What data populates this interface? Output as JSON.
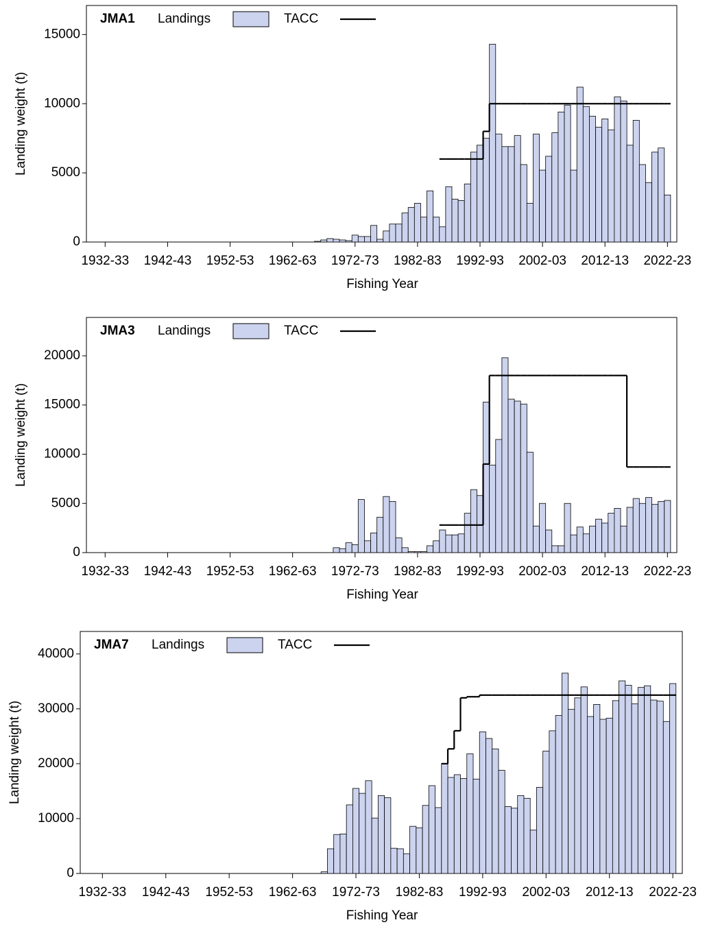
{
  "chart_data": [
    {
      "type": "bar",
      "title": "JMA1",
      "x_label": "Fishing Year",
      "y_label": "Landing weight (t)",
      "xlim": [
        1929,
        2023.5
      ],
      "ylim": [
        0,
        17100
      ],
      "yticks": [
        0,
        5000,
        10000,
        15000
      ],
      "xticks": [
        {
          "value": 1932,
          "label": "1932-33"
        },
        {
          "value": 1942,
          "label": "1942-43"
        },
        {
          "value": 1952,
          "label": "1952-53"
        },
        {
          "value": 1962,
          "label": "1962-63"
        },
        {
          "value": 1972,
          "label": "1972-73"
        },
        {
          "value": 1982,
          "label": "1982-83"
        },
        {
          "value": 1992,
          "label": "1992-93"
        },
        {
          "value": 2002,
          "label": "2002-03"
        },
        {
          "value": 2012,
          "label": "2012-13"
        },
        {
          "value": 2022,
          "label": "2022-23"
        }
      ],
      "x": [
        1966,
        1967,
        1968,
        1969,
        1970,
        1971,
        1972,
        1973,
        1974,
        1975,
        1976,
        1977,
        1978,
        1979,
        1980,
        1981,
        1982,
        1983,
        1984,
        1985,
        1986,
        1987,
        1988,
        1989,
        1990,
        1991,
        1992,
        1993,
        1994,
        1995,
        1996,
        1997,
        1998,
        1999,
        2000,
        2001,
        2002,
        2003,
        2004,
        2005,
        2006,
        2007,
        2008,
        2009,
        2010,
        2011,
        2012,
        2013,
        2014,
        2015,
        2016,
        2017,
        2018,
        2019,
        2020,
        2021,
        2022
      ],
      "series": [
        {
          "name": "Landings",
          "color": "#ccd3ee",
          "values": [
            50,
            150,
            250,
            200,
            150,
            100,
            500,
            400,
            400,
            1200,
            200,
            800,
            1300,
            1300,
            2100,
            2500,
            2800,
            1800,
            3700,
            1800,
            1100,
            4000,
            3100,
            3000,
            4200,
            6500,
            7000,
            7500,
            14300,
            7800,
            6900,
            6900,
            7700,
            5600,
            2800,
            7800,
            5200,
            6200,
            7900,
            9400,
            9900,
            5200,
            11200,
            9800,
            9100,
            8300,
            8900,
            8100,
            10500,
            10200,
            7000,
            8800,
            5600,
            4300,
            6500,
            6800,
            3400
          ]
        },
        {
          "name": "TACC",
          "color": "#000000",
          "values": [
            null,
            null,
            null,
            null,
            null,
            null,
            null,
            null,
            null,
            null,
            null,
            null,
            null,
            null,
            null,
            null,
            null,
            null,
            null,
            null,
            6000,
            6000,
            6000,
            6000,
            6000,
            6000,
            6000,
            8000,
            10000,
            10000,
            10000,
            10000,
            10000,
            10000,
            10000,
            10000,
            10000,
            10000,
            10000,
            10000,
            10000,
            10000,
            10000,
            10000,
            10000,
            10000,
            10000,
            10000,
            10000,
            10000,
            10000,
            10000,
            10000,
            10000,
            10000,
            10000,
            10000
          ]
        }
      ]
    },
    {
      "type": "bar",
      "title": "JMA3",
      "x_label": "Fishing Year",
      "y_label": "Landing weight (t)",
      "xlim": [
        1929,
        2023.5
      ],
      "ylim": [
        0,
        23900
      ],
      "yticks": [
        0,
        5000,
        10000,
        15000,
        20000
      ],
      "xticks": [
        {
          "value": 1932,
          "label": "1932-33"
        },
        {
          "value": 1942,
          "label": "1942-43"
        },
        {
          "value": 1952,
          "label": "1952-53"
        },
        {
          "value": 1962,
          "label": "1962-63"
        },
        {
          "value": 1972,
          "label": "1972-73"
        },
        {
          "value": 1982,
          "label": "1982-83"
        },
        {
          "value": 1992,
          "label": "1992-93"
        },
        {
          "value": 2002,
          "label": "2002-03"
        },
        {
          "value": 2012,
          "label": "2012-13"
        },
        {
          "value": 2022,
          "label": "2022-23"
        }
      ],
      "x": [
        1966,
        1967,
        1968,
        1969,
        1970,
        1971,
        1972,
        1973,
        1974,
        1975,
        1976,
        1977,
        1978,
        1979,
        1980,
        1981,
        1982,
        1983,
        1984,
        1985,
        1986,
        1987,
        1988,
        1989,
        1990,
        1991,
        1992,
        1993,
        1994,
        1995,
        1996,
        1997,
        1998,
        1999,
        2000,
        2001,
        2002,
        2003,
        2004,
        2005,
        2006,
        2007,
        2008,
        2009,
        2010,
        2011,
        2012,
        2013,
        2014,
        2015,
        2016,
        2017,
        2018,
        2019,
        2020,
        2021,
        2022
      ],
      "series": [
        {
          "name": "Landings",
          "color": "#ccd3ee",
          "values": [
            0,
            0,
            0,
            500,
            400,
            1000,
            800,
            5400,
            1200,
            2000,
            3600,
            5700,
            5200,
            1500,
            500,
            100,
            100,
            100,
            700,
            1200,
            2300,
            1800,
            1800,
            1900,
            4000,
            6400,
            5800,
            15300,
            8900,
            11500,
            19800,
            15600,
            15400,
            15100,
            10200,
            2700,
            5000,
            2300,
            700,
            700,
            5000,
            1800,
            2600,
            1900,
            2700,
            3400,
            3000,
            4000,
            4500,
            2700,
            4600,
            5500,
            5000,
            5600,
            4900,
            5200,
            5300
          ]
        },
        {
          "name": "TACC",
          "color": "#000000",
          "values": [
            null,
            null,
            null,
            null,
            null,
            null,
            null,
            null,
            null,
            null,
            null,
            null,
            null,
            null,
            null,
            null,
            null,
            null,
            null,
            null,
            2800,
            2800,
            2800,
            2800,
            2800,
            2800,
            2800,
            9000,
            18000,
            18000,
            18000,
            18000,
            18000,
            18000,
            18000,
            18000,
            18000,
            18000,
            18000,
            18000,
            18000,
            18000,
            18000,
            18000,
            18000,
            18000,
            18000,
            18000,
            18000,
            18000,
            8700,
            8700,
            8700,
            8700,
            8700,
            8700,
            8700
          ]
        }
      ]
    },
    {
      "type": "bar",
      "title": "JMA7",
      "x_label": "Fishing Year",
      "y_label": "Landing weight (t)",
      "xlim": [
        1928.5,
        2023.5
      ],
      "ylim": [
        0,
        44100
      ],
      "yticks": [
        0,
        10000,
        20000,
        30000,
        40000
      ],
      "xticks": [
        {
          "value": 1932,
          "label": "1932-33"
        },
        {
          "value": 1942,
          "label": "1942-43"
        },
        {
          "value": 1952,
          "label": "1952-53"
        },
        {
          "value": 1962,
          "label": "1962-63"
        },
        {
          "value": 1972,
          "label": "1972-73"
        },
        {
          "value": 1982,
          "label": "1982-83"
        },
        {
          "value": 1992,
          "label": "1992-93"
        },
        {
          "value": 2002,
          "label": "2002-03"
        },
        {
          "value": 2012,
          "label": "2012-13"
        },
        {
          "value": 2022,
          "label": "2022-23"
        }
      ],
      "x": [
        1966,
        1967,
        1968,
        1969,
        1970,
        1971,
        1972,
        1973,
        1974,
        1975,
        1976,
        1977,
        1978,
        1979,
        1980,
        1981,
        1982,
        1983,
        1984,
        1985,
        1986,
        1987,
        1988,
        1989,
        1990,
        1991,
        1992,
        1993,
        1994,
        1995,
        1996,
        1997,
        1998,
        1999,
        2000,
        2001,
        2002,
        2003,
        2004,
        2005,
        2006,
        2007,
        2008,
        2009,
        2010,
        2011,
        2012,
        2013,
        2014,
        2015,
        2016,
        2017,
        2018,
        2019,
        2020,
        2021,
        2022
      ],
      "series": [
        {
          "name": "Landings",
          "color": "#ccd3ee",
          "values": [
            0,
            300,
            4500,
            7100,
            7200,
            12500,
            15500,
            14600,
            16900,
            10100,
            14200,
            13800,
            4600,
            4500,
            3600,
            8600,
            8300,
            12400,
            16000,
            12000,
            20000,
            17500,
            18000,
            17300,
            21800,
            17200,
            25800,
            24600,
            22700,
            18800,
            12200,
            11900,
            14200,
            13700,
            7900,
            15700,
            22300,
            26000,
            28800,
            36500,
            29900,
            32000,
            34000,
            28600,
            30800,
            28100,
            28300,
            31500,
            35100,
            34300,
            30900,
            33900,
            34200,
            31600,
            31400,
            27700,
            34600
          ]
        },
        {
          "name": "TACC",
          "color": "#000000",
          "values": [
            null,
            null,
            null,
            null,
            null,
            null,
            null,
            null,
            null,
            null,
            null,
            null,
            null,
            null,
            null,
            null,
            null,
            null,
            null,
            null,
            20000,
            22700,
            26000,
            32000,
            32200,
            32200,
            32500,
            32500,
            32500,
            32500,
            32500,
            32500,
            32500,
            32500,
            32500,
            32500,
            32500,
            32500,
            32500,
            32500,
            32500,
            32500,
            32500,
            32500,
            32500,
            32500,
            32500,
            32500,
            32500,
            32500,
            32500,
            32500,
            32500,
            32500,
            32500,
            32500,
            32500
          ]
        }
      ]
    }
  ]
}
